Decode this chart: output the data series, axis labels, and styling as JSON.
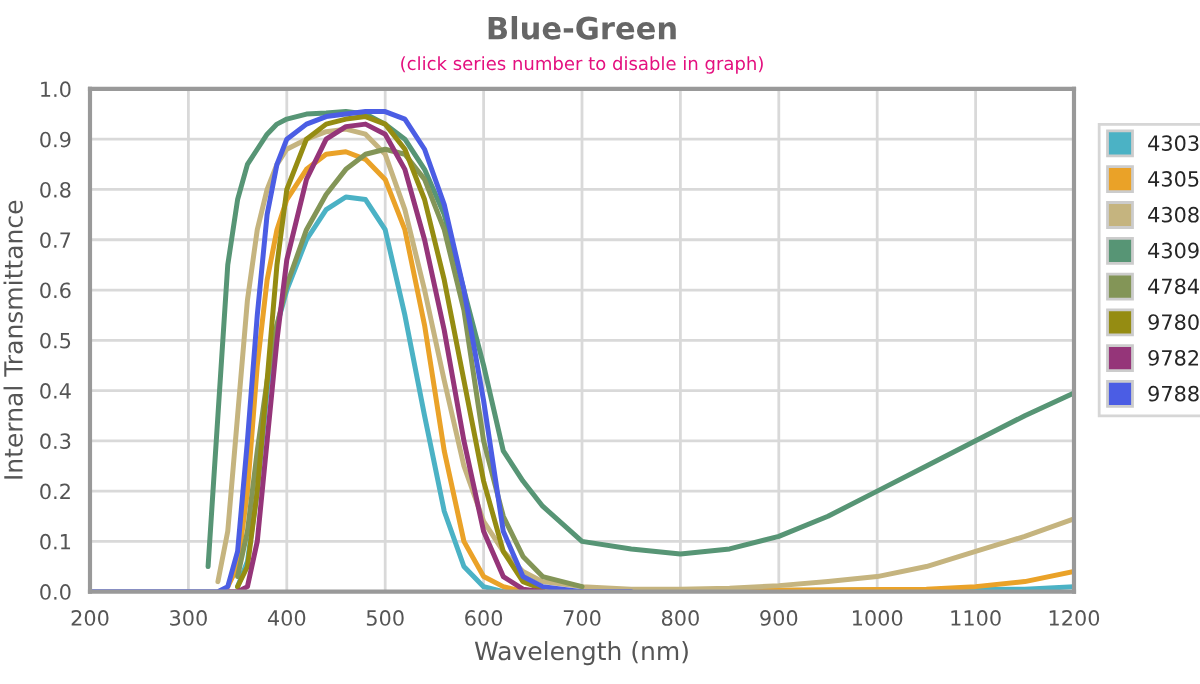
{
  "chart_data": {
    "type": "line",
    "title": "Blue-Green",
    "subtitle": "(click series number to disable in graph)",
    "xlabel": "Wavelength (nm)",
    "ylabel": "Internal Transmittance",
    "x": [
      200,
      300,
      320,
      330,
      340,
      350,
      360,
      370,
      380,
      390,
      400,
      420,
      440,
      460,
      480,
      500,
      520,
      540,
      560,
      580,
      600,
      620,
      640,
      660,
      700,
      750,
      800,
      850,
      900,
      950,
      1000,
      1050,
      1100,
      1150,
      1200
    ],
    "series": [
      {
        "name": "4303",
        "color": "#4bb2c5",
        "values": [
          null,
          null,
          null,
          null,
          null,
          0.01,
          0.06,
          0.2,
          0.4,
          0.53,
          0.6,
          0.7,
          0.76,
          0.785,
          0.78,
          0.72,
          0.55,
          0.35,
          0.16,
          0.05,
          0.01,
          0,
          null,
          null,
          null,
          null,
          null,
          null,
          null,
          null,
          null,
          null,
          null,
          0.005,
          0.01
        ]
      },
      {
        "name": "4305",
        "color": "#eaa228",
        "values": [
          null,
          null,
          null,
          null,
          0.01,
          0.05,
          0.2,
          0.45,
          0.62,
          0.72,
          0.78,
          0.84,
          0.87,
          0.875,
          0.86,
          0.82,
          0.72,
          0.53,
          0.28,
          0.1,
          0.03,
          0.01,
          0,
          null,
          null,
          null,
          null,
          null,
          null,
          null,
          null,
          0.005,
          0.01,
          0.02,
          0.04
        ]
      },
      {
        "name": "4308",
        "color": "#c5b47f",
        "values": [
          null,
          null,
          null,
          0.02,
          0.12,
          0.35,
          0.58,
          0.72,
          0.8,
          0.85,
          0.88,
          0.9,
          0.915,
          0.92,
          0.91,
          0.87,
          0.76,
          0.6,
          0.42,
          0.25,
          0.14,
          0.08,
          0.04,
          0.02,
          0.01,
          0.005,
          0.005,
          0.007,
          0.012,
          0.02,
          0.03,
          0.05,
          0.08,
          0.11,
          0.145
        ]
      },
      {
        "name": "4309",
        "color": "#579575",
        "values": [
          null,
          null,
          0.05,
          0.35,
          0.65,
          0.78,
          0.85,
          0.88,
          0.91,
          0.93,
          0.94,
          0.95,
          0.952,
          0.955,
          0.95,
          0.93,
          0.9,
          0.84,
          0.75,
          0.6,
          0.45,
          0.28,
          0.22,
          0.17,
          0.1,
          0.085,
          0.075,
          0.085,
          0.11,
          0.15,
          0.2,
          0.25,
          0.3,
          0.35,
          0.395
        ]
      },
      {
        "name": "4784",
        "color": "#839557",
        "values": [
          null,
          null,
          null,
          null,
          null,
          0.03,
          0.12,
          0.28,
          0.42,
          0.53,
          0.61,
          0.72,
          0.79,
          0.84,
          0.87,
          0.88,
          0.87,
          0.82,
          0.72,
          0.56,
          0.3,
          0.15,
          0.07,
          0.03,
          0.01,
          null,
          null,
          null,
          null,
          null,
          null,
          null,
          null,
          null,
          null
        ]
      },
      {
        "name": "9780",
        "color": "#958c12",
        "values": [
          null,
          null,
          null,
          null,
          null,
          0.01,
          0.05,
          0.2,
          0.42,
          0.65,
          0.8,
          0.9,
          0.93,
          0.94,
          0.945,
          0.93,
          0.88,
          0.78,
          0.62,
          0.42,
          0.22,
          0.08,
          0.02,
          0.005,
          null,
          null,
          null,
          null,
          null,
          null,
          null,
          null,
          null,
          null,
          null
        ]
      },
      {
        "name": "9782",
        "color": "#953579",
        "values": [
          null,
          null,
          null,
          null,
          0,
          0,
          0.01,
          0.1,
          0.3,
          0.5,
          0.66,
          0.82,
          0.9,
          0.925,
          0.93,
          0.91,
          0.84,
          0.7,
          0.52,
          0.3,
          0.12,
          0.03,
          0.005,
          0,
          null,
          null,
          null,
          null,
          null,
          null,
          null,
          null,
          null,
          null,
          null
        ]
      },
      {
        "name": "9788",
        "color": "#4b5de4",
        "values": [
          0,
          0,
          0,
          0,
          0.01,
          0.08,
          0.3,
          0.55,
          0.75,
          0.85,
          0.9,
          0.93,
          0.945,
          0.95,
          0.955,
          0.955,
          0.94,
          0.88,
          0.77,
          0.6,
          0.38,
          0.12,
          0.03,
          0.01,
          0,
          0,
          null,
          null,
          null,
          null,
          null,
          null,
          null,
          null,
          null
        ]
      }
    ],
    "xlim": [
      200,
      1200
    ],
    "xticks": [
      200,
      300,
      400,
      500,
      600,
      700,
      800,
      900,
      1000,
      1100,
      1200
    ],
    "ylim": [
      0,
      1.0
    ],
    "yticks": [
      {
        "value": 0,
        "label": "0.0"
      },
      {
        "value": 0.1,
        "label": "0.1"
      },
      {
        "value": 0.2,
        "label": "0.2"
      },
      {
        "value": 0.3,
        "label": "0.3"
      },
      {
        "value": 0.4,
        "label": "0.4"
      },
      {
        "value": 0.5,
        "label": "0.5"
      },
      {
        "value": 0.6,
        "label": "0.6"
      },
      {
        "value": 0.7,
        "label": "0.7"
      },
      {
        "value": 0.8,
        "label": "0.8"
      },
      {
        "value": 0.9,
        "label": "0.9"
      },
      {
        "value": 1.0,
        "label": "1.0"
      }
    ],
    "grid": true,
    "legend": "right",
    "marker": "none",
    "line_style": "solid"
  }
}
